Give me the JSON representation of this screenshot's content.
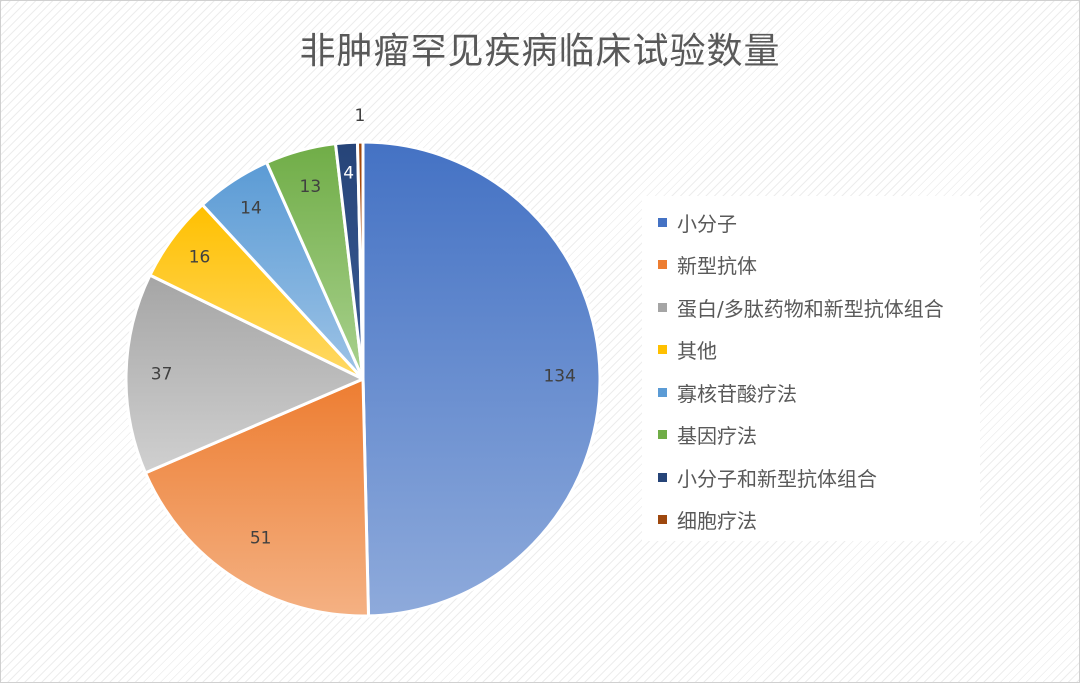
{
  "chart_data": {
    "type": "pie",
    "title": "非肿瘤罕见疾病临床试验数量",
    "legend_position": "right",
    "start_angle_deg": 0,
    "direction": "clockwise",
    "slices": [
      {
        "label": "小分子",
        "value": 134,
        "color": "#4472c4",
        "color_light": "#8eaadb"
      },
      {
        "label": "新型抗体",
        "value": 51,
        "color": "#ed7d31",
        "color_light": "#f4b183"
      },
      {
        "label": "蛋白/多肽药物和新型抗体组合",
        "value": 37,
        "color": "#a5a5a5",
        "color_light": "#d0d0d0"
      },
      {
        "label": "其他",
        "value": 16,
        "color": "#ffc000",
        "color_light": "#ffd966"
      },
      {
        "label": "寡核苷酸疗法",
        "value": 14,
        "color": "#5b9bd5",
        "color_light": "#9dc3e6"
      },
      {
        "label": "基因疗法",
        "value": 13,
        "color": "#70ad47",
        "color_light": "#a9d18e"
      },
      {
        "label": "小分子和新型抗体组合",
        "value": 4,
        "color": "#264478",
        "color_light": "#3b5b96"
      },
      {
        "label": "细胞疗法",
        "value": 1,
        "color": "#9e480e",
        "color_light": "#c55a11"
      }
    ]
  }
}
